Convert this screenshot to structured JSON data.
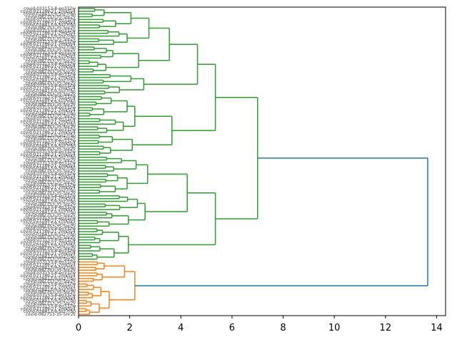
{
  "chart_data": {
    "type": "dendrogram",
    "orientation": "horizontal",
    "xlim": [
      0,
      14.35
    ],
    "x_ticks": [
      0,
      2,
      4,
      6,
      8,
      10,
      12,
      14
    ],
    "x_tick_labels": [
      "0",
      "2",
      "4",
      "6",
      "8",
      "10",
      "12",
      "14"
    ],
    "grid": false,
    "n_leaves": 112,
    "leaf_labels_note_values": [
      "covid-033153-8-eo332w",
      "covid-021789-21-2mk5v4",
      "covid-028413-9-5sz7rbp",
      "covid-082753-35-5nr2v"
    ],
    "colors": {
      "green_cluster": "#2ca02c",
      "orange_cluster": "#ff7f0e",
      "root_link": "#1f77b4"
    },
    "clusters": [
      {
        "name": "green",
        "leaf_count": 92,
        "merge_height": 7.0
      },
      {
        "name": "orange",
        "leaf_count": 20,
        "merge_height": 2.2
      }
    ],
    "merges": [
      {
        "cluster": "green",
        "height": 1.0
      },
      {
        "cluster": "green",
        "height": 1.45
      },
      {
        "cluster": "green",
        "height": 2.05
      },
      {
        "cluster": "green",
        "height": 2.75
      },
      {
        "cluster": "green",
        "height": 3.55
      },
      {
        "cluster": "green",
        "height": 4.65
      },
      {
        "cluster": "green",
        "height": 5.35
      },
      {
        "cluster": "green",
        "height": 2.35
      },
      {
        "cluster": "green",
        "height": 2.55
      },
      {
        "cluster": "green",
        "height": 1.9
      },
      {
        "cluster": "green",
        "height": 2.2
      },
      {
        "cluster": "green",
        "height": 3.65
      },
      {
        "cluster": "green",
        "height": 2.25
      },
      {
        "cluster": "green",
        "height": 2.7
      },
      {
        "cluster": "green",
        "height": 2.3
      },
      {
        "cluster": "green",
        "height": 2.6
      },
      {
        "cluster": "green",
        "height": 4.25
      },
      {
        "cluster": "green",
        "height": 1.95
      },
      {
        "cluster": "green",
        "height": 5.35
      },
      {
        "cluster": "green",
        "height": 7.0
      },
      {
        "cluster": "orange",
        "height": 1.8
      },
      {
        "cluster": "orange",
        "height": 2.2
      },
      {
        "cluster": "root",
        "height": 13.65
      }
    ]
  }
}
